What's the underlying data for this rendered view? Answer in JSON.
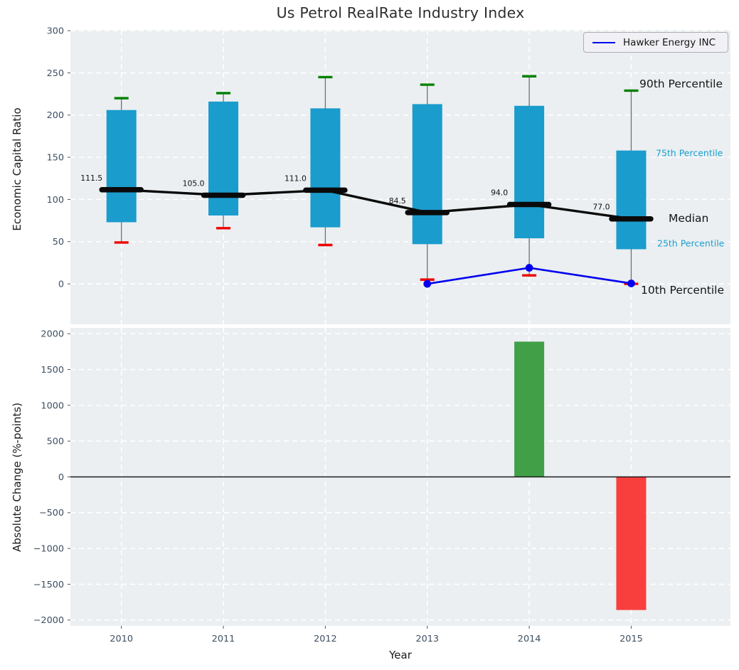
{
  "title": "Us Petrol RealRate Industry Index",
  "legend": {
    "label": "Hawker Energy INC"
  },
  "annotations": [
    {
      "id": "p90",
      "label": "90th Percentile",
      "style": "dark"
    },
    {
      "id": "p75",
      "label": "75th Percentile",
      "style": "accent"
    },
    {
      "id": "median",
      "label": "Median",
      "style": "dark"
    },
    {
      "id": "p25",
      "label": "25th Percentile",
      "style": "accent"
    },
    {
      "id": "p10",
      "label": "10th Percentile",
      "style": "dark"
    }
  ],
  "colors": {
    "box": "#1a9ccd",
    "p90_cap": "#008000",
    "p10_cap": "#ee0000",
    "median": "#0a0a0a",
    "company_line": "#0000ee",
    "bar_positive": "#41a047",
    "bar_negative": "#f93e3e",
    "panel_bg": "#ebeff1",
    "grid": "#ffffff",
    "tick_label": "#3c4e60",
    "whisker": "#707070",
    "zero_line": "#1a1a1a"
  },
  "chart_data": [
    {
      "type": "boxplot",
      "title": "Us Petrol RealRate Industry Index",
      "ylabel": "Economic Capital Ratio",
      "categories": [
        2010,
        2011,
        2012,
        2013,
        2014,
        2015
      ],
      "ylim": [
        -48,
        301
      ],
      "yticks": [
        0,
        50,
        100,
        150,
        200,
        250,
        300
      ],
      "ytick_labels": [
        "0",
        "50",
        "100",
        "150",
        "200",
        "250",
        "300"
      ],
      "grid": true,
      "legend_position": "upper right",
      "series": [
        {
          "name": "90th Percentile",
          "values": [
            220,
            226,
            245,
            236,
            246,
            229
          ]
        },
        {
          "name": "75th Percentile",
          "values": [
            206,
            216,
            208,
            213,
            211,
            158
          ]
        },
        {
          "name": "Median",
          "values": [
            111.5,
            105.0,
            111.0,
            84.5,
            94.0,
            77.0
          ]
        },
        {
          "name": "25th Percentile",
          "values": [
            73,
            81,
            67,
            47,
            54,
            41
          ]
        },
        {
          "name": "10th Percentile",
          "values": [
            49,
            66,
            46,
            5,
            10,
            0
          ]
        }
      ],
      "median_labels": [
        "111.5",
        "105.0",
        "111.0",
        "84.5",
        "94.0",
        "77.0"
      ],
      "line_series": {
        "name": "Hawker Energy INC",
        "x": [
          2013,
          2014,
          2015
        ],
        "values": [
          0,
          19,
          0.5
        ]
      }
    },
    {
      "type": "bar",
      "ylabel": "Absolute Change (%-points)",
      "xlabel": "Year",
      "categories": [
        2010,
        2011,
        2012,
        2013,
        2014,
        2015
      ],
      "x": [
        2014,
        2015
      ],
      "values": [
        1890,
        -1860
      ],
      "ylim": [
        -2082,
        2082
      ],
      "yticks": [
        2000,
        1500,
        1000,
        500,
        0,
        -500,
        -1000,
        -1500,
        -2000
      ],
      "ytick_labels": [
        "2000",
        "1500",
        "1000",
        "500",
        "0",
        "−500",
        "−1000",
        "−1500",
        "−2000"
      ],
      "grid": true
    }
  ]
}
